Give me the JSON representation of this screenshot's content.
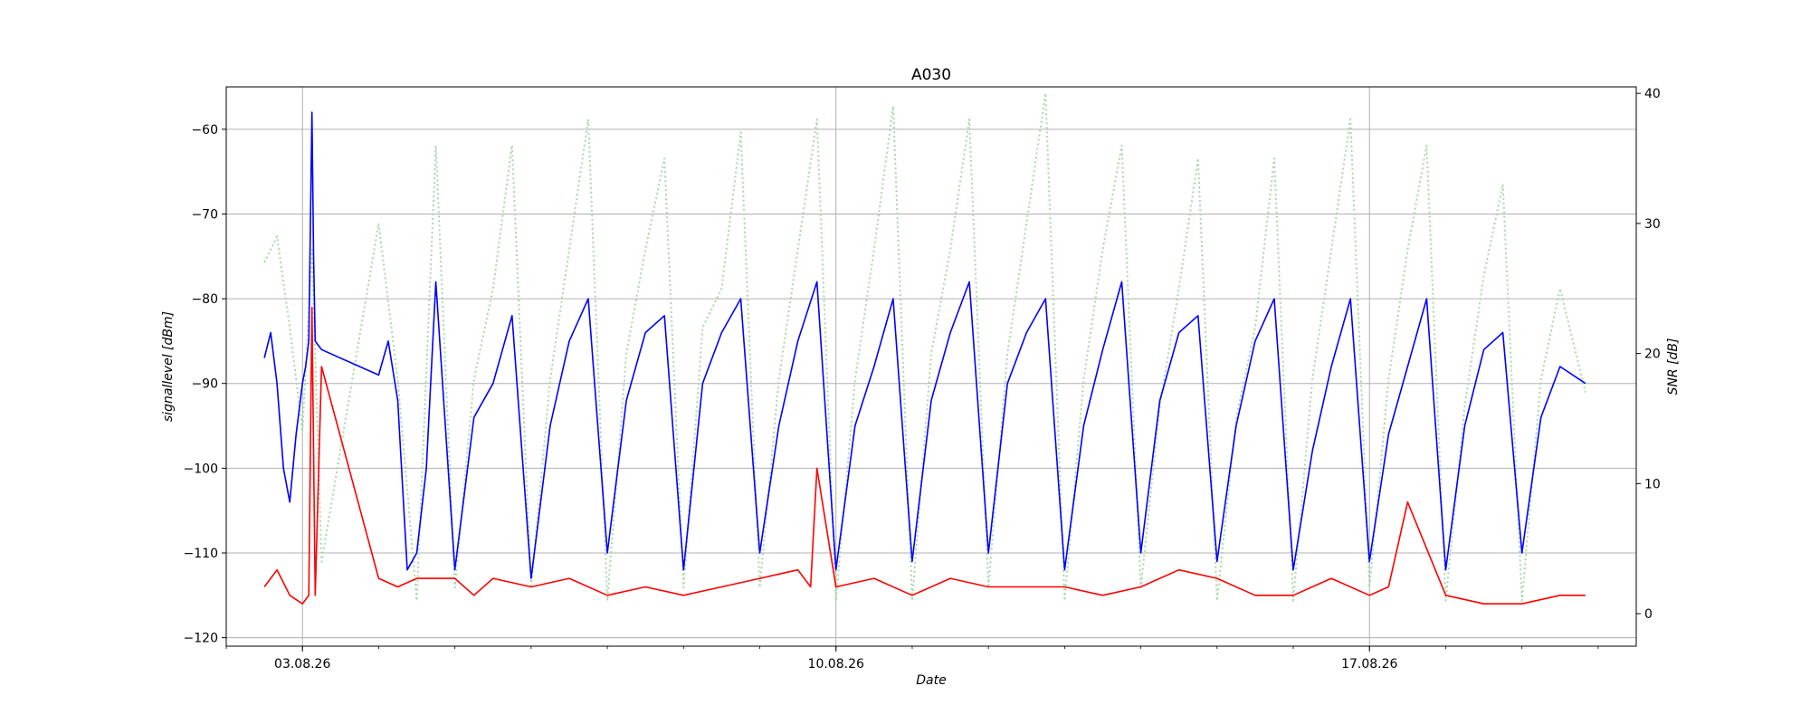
{
  "chart_data": {
    "type": "line",
    "title": "A030",
    "xlabel": "Date",
    "ylabel_left": "signallevel [dBm]",
    "ylabel_right": "SNR [dB]",
    "x_ticks": [
      "03.08.26",
      "10.08.26",
      "17.08.26"
    ],
    "x_tick_dates": [
      "2026-08-03",
      "2026-08-10",
      "2026-08-17"
    ],
    "xlim": [
      "2026-08-02T00:00",
      "2026-08-20T12:00"
    ],
    "ylim_left": [
      -121,
      -55
    ],
    "yticks_left": [
      -120,
      -110,
      -100,
      -90,
      -80,
      -70,
      -60
    ],
    "ylim_right": [
      -2.5,
      40.5
    ],
    "yticks_right": [
      0,
      10,
      20,
      30,
      40
    ],
    "grid": true,
    "colors": {
      "signal": "#0000ff",
      "noise": "#ff0000",
      "snr": "#a8d8a8",
      "grid": "#b0b0b0",
      "axes": "#000000"
    },
    "series": [
      {
        "axis": "left",
        "style": "solid",
        "color": "#0000ff",
        "x": [
          "2026-08-02T12:00",
          "2026-08-02T14:00",
          "2026-08-02T16:00",
          "2026-08-02T18:00",
          "2026-08-02T20:00",
          "2026-08-02T22:00",
          "2026-08-03T00:00",
          "2026-08-03T01:00",
          "2026-08-03T02:00",
          "2026-08-03T03:00",
          "2026-08-03T03:30",
          "2026-08-03T04:00",
          "2026-08-03T06:00",
          "2026-08-04T00:00",
          "2026-08-04T03:00",
          "2026-08-04T06:00",
          "2026-08-04T09:00",
          "2026-08-04T12:00",
          "2026-08-04T15:00",
          "2026-08-04T18:00",
          "2026-08-05T00:00",
          "2026-08-05T06:00",
          "2026-08-05T12:00",
          "2026-08-05T18:00",
          "2026-08-06T00:00",
          "2026-08-06T06:00",
          "2026-08-06T12:00",
          "2026-08-06T18:00",
          "2026-08-07T00:00",
          "2026-08-07T06:00",
          "2026-08-07T12:00",
          "2026-08-07T18:00",
          "2026-08-08T00:00",
          "2026-08-08T06:00",
          "2026-08-08T12:00",
          "2026-08-08T18:00",
          "2026-08-09T00:00",
          "2026-08-09T06:00",
          "2026-08-09T12:00",
          "2026-08-09T18:00",
          "2026-08-10T00:00",
          "2026-08-10T06:00",
          "2026-08-10T12:00",
          "2026-08-10T18:00",
          "2026-08-11T00:00",
          "2026-08-11T06:00",
          "2026-08-11T12:00",
          "2026-08-11T18:00",
          "2026-08-12T00:00",
          "2026-08-12T06:00",
          "2026-08-12T12:00",
          "2026-08-12T18:00",
          "2026-08-13T00:00",
          "2026-08-13T06:00",
          "2026-08-13T12:00",
          "2026-08-13T18:00",
          "2026-08-14T00:00",
          "2026-08-14T06:00",
          "2026-08-14T12:00",
          "2026-08-14T18:00",
          "2026-08-15T00:00",
          "2026-08-15T06:00",
          "2026-08-15T12:00",
          "2026-08-15T18:00",
          "2026-08-16T00:00",
          "2026-08-16T06:00",
          "2026-08-16T12:00",
          "2026-08-16T18:00",
          "2026-08-17T00:00",
          "2026-08-17T06:00",
          "2026-08-17T12:00",
          "2026-08-17T18:00",
          "2026-08-18T00:00",
          "2026-08-18T06:00",
          "2026-08-18T12:00",
          "2026-08-18T18:00",
          "2026-08-19T00:00",
          "2026-08-19T06:00",
          "2026-08-19T12:00",
          "2026-08-19T20:00"
        ],
        "y": [
          -87,
          -84,
          -90,
          -100,
          -104,
          -96,
          -90,
          -88,
          -85,
          -58,
          -75,
          -85,
          -86,
          -89,
          -85,
          -92,
          -112,
          -110,
          -100,
          -78,
          -112,
          -94,
          -90,
          -82,
          -113,
          -95,
          -85,
          -80,
          -110,
          -92,
          -84,
          -82,
          -112,
          -90,
          -84,
          -80,
          -110,
          -95,
          -85,
          -78,
          -112,
          -95,
          -88,
          -80,
          -111,
          -92,
          -84,
          -78,
          -110,
          -90,
          -84,
          -80,
          -112,
          -95,
          -86,
          -78,
          -110,
          -92,
          -84,
          -82,
          -111,
          -95,
          -85,
          -80,
          -112,
          -98,
          -88,
          -80,
          -111,
          -96,
          -88,
          -80,
          -112,
          -95,
          -86,
          -84,
          -110,
          -94,
          -88,
          -90
        ]
      },
      {
        "axis": "left",
        "style": "solid",
        "color": "#ff0000",
        "x": [
          "2026-08-02T12:00",
          "2026-08-02T16:00",
          "2026-08-02T20:00",
          "2026-08-03T00:00",
          "2026-08-03T02:00",
          "2026-08-03T03:00",
          "2026-08-03T04:00",
          "2026-08-03T06:00",
          "2026-08-04T00:00",
          "2026-08-04T06:00",
          "2026-08-04T12:00",
          "2026-08-05T00:00",
          "2026-08-05T06:00",
          "2026-08-05T12:00",
          "2026-08-06T00:00",
          "2026-08-06T12:00",
          "2026-08-07T00:00",
          "2026-08-07T12:00",
          "2026-08-08T00:00",
          "2026-08-08T12:00",
          "2026-08-09T00:00",
          "2026-08-09T12:00",
          "2026-08-09T16:00",
          "2026-08-09T18:00",
          "2026-08-10T00:00",
          "2026-08-10T12:00",
          "2026-08-11T00:00",
          "2026-08-11T12:00",
          "2026-08-12T00:00",
          "2026-08-12T12:00",
          "2026-08-13T00:00",
          "2026-08-13T12:00",
          "2026-08-14T00:00",
          "2026-08-14T12:00",
          "2026-08-15T00:00",
          "2026-08-15T12:00",
          "2026-08-16T00:00",
          "2026-08-16T12:00",
          "2026-08-17T00:00",
          "2026-08-17T06:00",
          "2026-08-17T12:00",
          "2026-08-18T00:00",
          "2026-08-18T12:00",
          "2026-08-19T00:00",
          "2026-08-19T12:00",
          "2026-08-19T20:00"
        ],
        "y": [
          -114,
          -112,
          -115,
          -116,
          -115,
          -81,
          -115,
          -88,
          -113,
          -114,
          -113,
          -113,
          -115,
          -113,
          -114,
          -113,
          -115,
          -114,
          -115,
          -114,
          -113,
          -112,
          -114,
          -100,
          -114,
          -113,
          -115,
          -113,
          -114,
          -114,
          -114,
          -115,
          -114,
          -112,
          -113,
          -115,
          -115,
          -113,
          -115,
          -114,
          -104,
          -115,
          -116,
          -116,
          -115,
          -115
        ]
      },
      {
        "axis": "right",
        "style": "dotted",
        "color": "#a8d8a8",
        "x": [
          "2026-08-02T12:00",
          "2026-08-02T16:00",
          "2026-08-02T20:00",
          "2026-08-03T00:00",
          "2026-08-03T03:00",
          "2026-08-03T06:00",
          "2026-08-04T00:00",
          "2026-08-04T06:00",
          "2026-08-04T12:00",
          "2026-08-04T18:00",
          "2026-08-05T00:00",
          "2026-08-05T06:00",
          "2026-08-05T12:00",
          "2026-08-05T18:00",
          "2026-08-06T00:00",
          "2026-08-06T06:00",
          "2026-08-06T12:00",
          "2026-08-06T18:00",
          "2026-08-07T00:00",
          "2026-08-07T06:00",
          "2026-08-07T12:00",
          "2026-08-07T18:00",
          "2026-08-08T00:00",
          "2026-08-08T06:00",
          "2026-08-08T12:00",
          "2026-08-08T18:00",
          "2026-08-09T00:00",
          "2026-08-09T06:00",
          "2026-08-09T12:00",
          "2026-08-09T18:00",
          "2026-08-10T00:00",
          "2026-08-10T06:00",
          "2026-08-10T12:00",
          "2026-08-10T18:00",
          "2026-08-11T00:00",
          "2026-08-11T06:00",
          "2026-08-11T12:00",
          "2026-08-11T18:00",
          "2026-08-12T00:00",
          "2026-08-12T06:00",
          "2026-08-12T12:00",
          "2026-08-12T18:00",
          "2026-08-13T00:00",
          "2026-08-13T06:00",
          "2026-08-13T12:00",
          "2026-08-13T18:00",
          "2026-08-14T00:00",
          "2026-08-14T06:00",
          "2026-08-14T12:00",
          "2026-08-14T18:00",
          "2026-08-15T00:00",
          "2026-08-15T06:00",
          "2026-08-15T12:00",
          "2026-08-15T18:00",
          "2026-08-16T00:00",
          "2026-08-16T06:00",
          "2026-08-16T12:00",
          "2026-08-16T18:00",
          "2026-08-17T00:00",
          "2026-08-17T06:00",
          "2026-08-17T12:00",
          "2026-08-17T18:00",
          "2026-08-18T00:00",
          "2026-08-18T06:00",
          "2026-08-18T12:00",
          "2026-08-18T18:00",
          "2026-08-19T00:00",
          "2026-08-19T06:00",
          "2026-08-19T12:00",
          "2026-08-19T20:00"
        ],
        "y": [
          27,
          29,
          22,
          14,
          28,
          4,
          30,
          18,
          1,
          36,
          2,
          18,
          25,
          36,
          2,
          18,
          28,
          38,
          1,
          20,
          28,
          35,
          2,
          22,
          25,
          37,
          2,
          18,
          28,
          38,
          1,
          18,
          28,
          39,
          1,
          20,
          28,
          38,
          2,
          20,
          30,
          40,
          1,
          18,
          28,
          36,
          2,
          16,
          25,
          35,
          1,
          15,
          22,
          35,
          1,
          18,
          28,
          38,
          2,
          18,
          28,
          36,
          1,
          16,
          26,
          33,
          1,
          18,
          25,
          17
        ]
      }
    ]
  }
}
